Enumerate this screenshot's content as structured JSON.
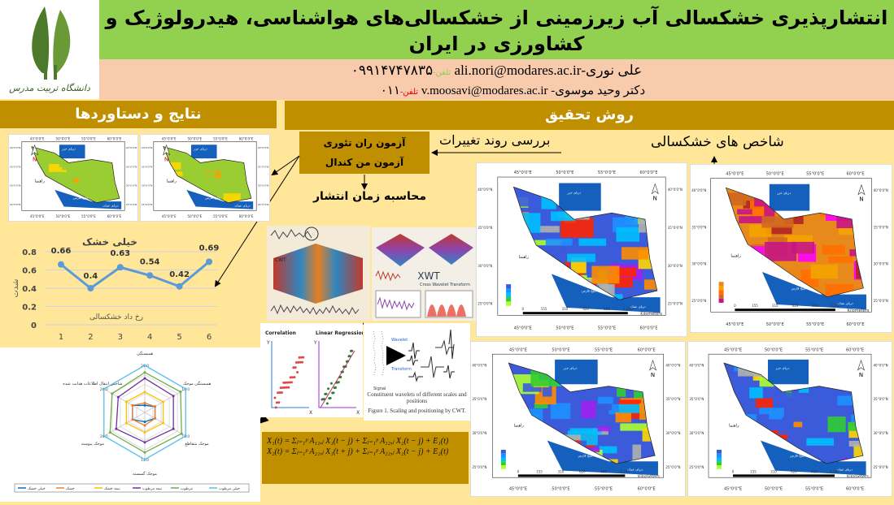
{
  "header": {
    "title": "انتشارپذیری خشکسالی آب زیرزمینی از خشکسالی‌های هواشناسی، هیدرولوژیک و کشاورزی در ایران",
    "logo_text": "دانشگاه تربیت مدرس",
    "authors": [
      {
        "name": "علی نوری-",
        "email": "ali.nori@modares.ac.ir",
        "phone_label": "تلفن-",
        "phone": "۰۹۹۱۴۷۴۷۸۳۵"
      },
      {
        "name": "دکتر وحید موسوی- ",
        "email": "v.moosavi@modares.ac.ir",
        "phone_label": "تلفن-",
        "phone": "۰۱۱"
      }
    ]
  },
  "sections": {
    "results": "نتایج و دستاوردها",
    "method": "روش تحقیق"
  },
  "method": {
    "drought_indices": "شاخص های خشکسالی",
    "trend_review": "بررسی روند تغییرات",
    "tests": [
      "آزمون ران تئوری",
      "آزمون من کندال"
    ],
    "propagation_time": "محاسبه زمان انتشار",
    "correlation_title": "Correlation",
    "regression_title": "Linear Regression",
    "axis_x": "X",
    "axis_y": "Y",
    "cwt_caption": "Figure 1. Scaling and positioning by CWT.",
    "cwt_signal": "Signal",
    "cwt_wavelet": "Wavelet",
    "cwt_transform": "Transform",
    "cwt_components": "Constituent wavelets of different scales and positions",
    "xwt_label": "XWT",
    "xwt_sub": "Cross Wavelet Transform",
    "cwt_label": "CWT",
    "equations": [
      "X₁(t) = Σⱼ₌₁ᵖ A₁₁,ⱼ X₁(t − j) + Σⱼ₌₁ᵖ A₁₂,ⱼ X₂(t − j) + E₁(t)",
      "X₂(t) = Σⱼ₌₁ᵖ A₂₁,ⱼ X₁(t + j) + Σⱼ₌₁ᵖ A₂₂,ⱼ X₂(t − j) + E₂(t)"
    ]
  },
  "maps": {
    "lon_ticks": [
      "45°0'0\"E",
      "50°0'0\"E",
      "55°0'0\"E",
      "60°0'0\"E"
    ],
    "lat_ticks": [
      "40°0'0\"N",
      "35°0'0\"N",
      "30°0'0\"N",
      "25°0'0\"N"
    ],
    "north": "N",
    "legend_title": "راهنما",
    "caspian": "دریای خزر",
    "gulf": "خلیج فارس",
    "oman": "دریای عمان",
    "scale": [
      "0",
      "155",
      "310",
      "620",
      "930",
      "1,240"
    ],
    "scale_unit": "Kilometers",
    "palettes": {
      "rainbow": [
        "#3b5bdb",
        "#1e90ff",
        "#00bfff",
        "#32cd32",
        "#adff2f",
        "#ffd700",
        "#ff8c00",
        "#ff2400",
        "#a020f0",
        "#b0b0b0"
      ],
      "trend": [
        "#9acd32",
        "#9acd32",
        "#f4a300",
        "#9acd32",
        "#ffd700"
      ],
      "orange": [
        "#e8891c",
        "#f4a300",
        "#ff7000",
        "#d2691e",
        "#c71585",
        "#ff00ff",
        "#b22222"
      ]
    }
  },
  "colors": {
    "title_bg": "#92d050",
    "authors_bg": "#f8cbad",
    "section_bg": "#bf8f00",
    "panel_bg": "#ffe699",
    "line": "#5b9bd5"
  },
  "chart_data": [
    {
      "type": "line",
      "title": "خیلی خشک",
      "xlabel": "رخ داد خشکسالی",
      "ylabel": "شدت",
      "categories": [
        "1",
        "2",
        "3",
        "4",
        "5",
        "6"
      ],
      "values": [
        0.66,
        0.4,
        0.63,
        0.54,
        0.42,
        0.69
      ],
      "ylim": [
        0,
        0.8
      ],
      "yticks": [
        "0",
        "0.2",
        "0.4",
        "0.6",
        "0.8"
      ],
      "grid": true,
      "data_labels": true
    },
    {
      "type": "radar",
      "axes": [
        "همبستگی",
        "همبستگی موجک",
        "موجک متقاطع",
        "موجک گسسته",
        "موجک پیوسته",
        "شاخص انتقال اطلاعات هدایت شده"
      ],
      "outer_labels": [
        "20.0",
        "18.0",
        "18.0",
        "13.0",
        "20.0",
        "20.0"
      ],
      "rmax": 20,
      "series": [
        {
          "name": "خیلی خشک",
          "color": "#0070c0",
          "values": [
            3,
            5,
            5,
            4,
            6,
            6
          ]
        },
        {
          "name": "خشک",
          "color": "#ed7d31",
          "values": [
            4,
            5,
            5,
            5.5,
            6,
            6
          ]
        },
        {
          "name": "نیمه خشک",
          "color": "#ffc000",
          "values": [
            8.7,
            9,
            9,
            8.5,
            9,
            9
          ]
        },
        {
          "name": "نیمه مرطوب",
          "color": "#7030a0",
          "values": [
            14.5,
            14,
            14,
            12.7,
            14,
            13
          ]
        },
        {
          "name": "مرطوب",
          "color": "#70ad47",
          "values": [
            17,
            17.5,
            18,
            17,
            17,
            16
          ]
        },
        {
          "name": "خیلی مرطوب",
          "color": "#5bc0eb",
          "values": [
            20,
            20,
            20,
            20,
            20,
            20
          ]
        }
      ],
      "legend": "bottom"
    }
  ]
}
